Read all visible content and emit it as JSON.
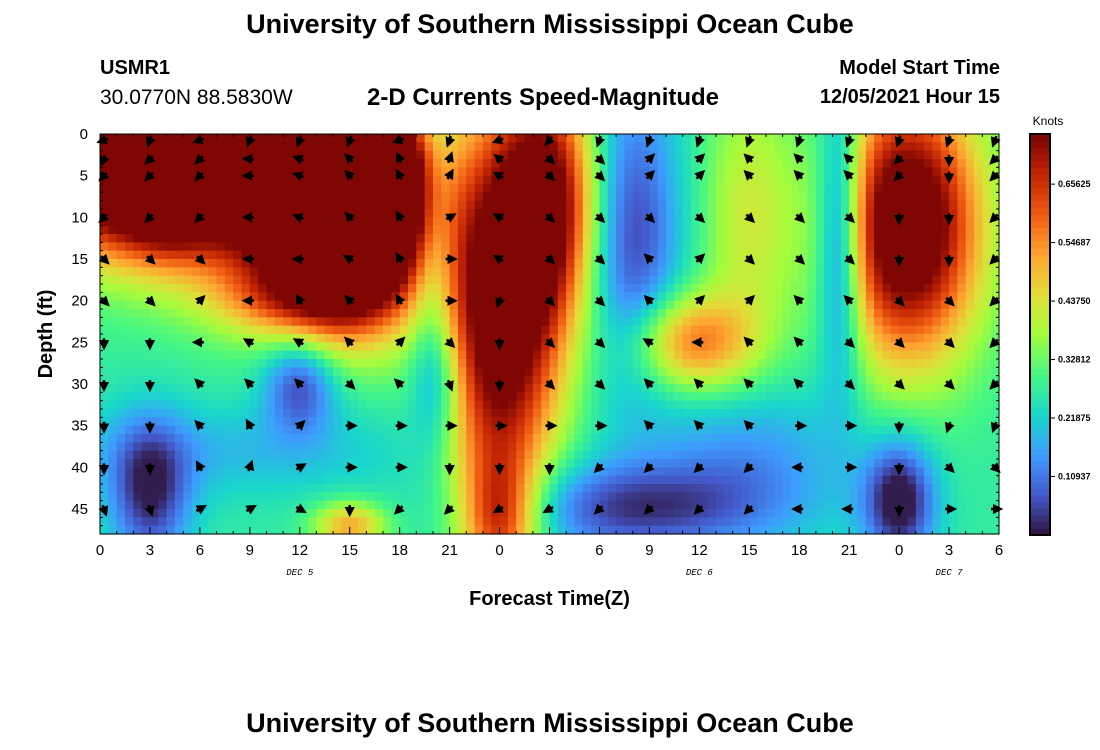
{
  "header": {
    "title": "University of Southern Mississippi Ocean Cube",
    "station_id": "USMR1",
    "coordinates": "30.0770N  88.5830W",
    "subtitle": "2-D Currents Speed-Magnitude",
    "model_start_label": "Model Start Time",
    "model_start_value": "12/05/2021 Hour 15"
  },
  "footer": {
    "title": "University of Southern Mississippi Ocean Cube"
  },
  "chart_data": {
    "type": "heatmap",
    "title": "2-D Currents Speed-Magnitude",
    "xlabel": "Forecast Time(Z)",
    "ylabel": "Depth (ft)",
    "x_ticks": [
      "0",
      "3",
      "6",
      "9",
      "12",
      "15",
      "18",
      "21",
      "0",
      "3",
      "6",
      "9",
      "12",
      "15",
      "18",
      "21",
      "0",
      "3",
      "6"
    ],
    "xlim": [
      0,
      54
    ],
    "y_ticks": [
      "0",
      "5",
      "10",
      "15",
      "20",
      "25",
      "30",
      "35",
      "40",
      "45"
    ],
    "ylim": [
      0,
      48
    ],
    "y_inverted": true,
    "date_labels": [
      {
        "label": "DEC 5",
        "x": 12
      },
      {
        "label": "DEC 6",
        "x": 36
      },
      {
        "label": "DEC 7",
        "x": 51
      }
    ],
    "colorbar": {
      "label": "Knots",
      "range": [
        0,
        0.75
      ],
      "ticks": [
        "0.65625",
        "0.54687",
        "0.43750",
        "0.32812",
        "0.21875",
        "0.10937"
      ],
      "tick_values": [
        0.65625,
        0.546875,
        0.4375,
        0.328125,
        0.21875,
        0.109375
      ]
    },
    "speed_features": [
      {
        "t": 0,
        "d": 4,
        "sx": 3,
        "sy": 7,
        "v": 0.56
      },
      {
        "t": 4,
        "d": 4,
        "sx": 2,
        "sy": 6,
        "v": 0.52
      },
      {
        "t": 10,
        "d": 4,
        "sx": 5,
        "sy": 9,
        "v": 0.75
      },
      {
        "t": 15,
        "d": 14,
        "sx": 3,
        "sy": 7,
        "v": 0.68
      },
      {
        "t": 17,
        "d": 5,
        "sx": 2,
        "sy": 6,
        "v": 0.6
      },
      {
        "t": 20,
        "d": 14,
        "sx": 1,
        "sy": 14,
        "v": -0.16
      },
      {
        "t": 24,
        "d": 22,
        "sx": 2.5,
        "sy": 16,
        "v": 0.58
      },
      {
        "t": 27,
        "d": 8,
        "sx": 2,
        "sy": 10,
        "v": 0.45
      },
      {
        "t": 24,
        "d": 46,
        "sx": 1.5,
        "sy": 5,
        "v": 0.3
      },
      {
        "t": 32,
        "d": 12,
        "sx": 2,
        "sy": 13,
        "v": -0.22
      },
      {
        "t": 35.5,
        "d": 25,
        "sx": 2.5,
        "sy": 4,
        "v": 0.3
      },
      {
        "t": 44.5,
        "d": 12,
        "sx": 1,
        "sy": 12,
        "v": -0.3
      },
      {
        "t": 48.5,
        "d": 11,
        "sx": 3,
        "sy": 11,
        "v": 0.62
      },
      {
        "t": 12,
        "d": 30,
        "sx": 1.5,
        "sy": 4,
        "v": -0.22
      },
      {
        "t": 20.5,
        "d": 30,
        "sx": 1.2,
        "sy": 5,
        "v": -0.12
      },
      {
        "t": 3,
        "d": 43,
        "sx": 1.7,
        "sy": 6,
        "v": -0.25
      },
      {
        "t": 8,
        "d": 38,
        "sx": 8,
        "sy": 4,
        "v": -0.08
      },
      {
        "t": 32,
        "d": 45,
        "sx": 6,
        "sy": 4,
        "v": -0.22
      },
      {
        "t": 48,
        "d": 44,
        "sx": 1.5,
        "sy": 5,
        "v": -0.3
      },
      {
        "t": 39,
        "d": 38,
        "sx": 4,
        "sy": 6,
        "v": -0.12
      },
      {
        "t": 15,
        "d": 47,
        "sx": 1.5,
        "sy": 2,
        "v": 0.25
      },
      {
        "t": 39,
        "d": 10,
        "sx": 2,
        "sy": 12,
        "v": 0.15
      },
      {
        "t": 11,
        "d": 20,
        "sx": 3,
        "sy": 3,
        "v": 0.15
      }
    ],
    "vector_times": [
      0,
      3,
      6,
      9,
      12,
      15,
      18,
      21,
      24,
      27,
      30,
      33,
      36,
      39,
      42,
      45,
      48,
      51,
      54
    ],
    "vector_depths": [
      0,
      3,
      5,
      8,
      10,
      12,
      15,
      17,
      20,
      22,
      25,
      27,
      30,
      32,
      35,
      37,
      40,
      42,
      45
    ],
    "vector_rows": [
      {
        "depth": 0,
        "deg": [
          250,
          200,
          250,
          200,
          200,
          200,
          250,
          200,
          250,
          220,
          200,
          200,
          200,
          200,
          200,
          200,
          200,
          200,
          200
        ]
      },
      {
        "depth": 3,
        "deg": [
          200,
          225,
          225,
          275,
          290,
          315,
          335,
          20,
          310,
          135,
          135,
          45,
          45,
          315,
          315,
          315,
          225,
          180,
          225
        ]
      },
      {
        "depth": 5,
        "deg": [
          225,
          225,
          225,
          270,
          290,
          315,
          330,
          30,
          300,
          135,
          135,
          45,
          45,
          315,
          315,
          315,
          225,
          180,
          225
        ]
      },
      {
        "depth": 10,
        "deg": [
          225,
          225,
          225,
          270,
          290,
          315,
          330,
          60,
          300,
          135,
          135,
          135,
          135,
          135,
          135,
          135,
          180,
          180,
          225
        ]
      },
      {
        "depth": 15,
        "deg": [
          135,
          135,
          135,
          270,
          270,
          300,
          330,
          90,
          300,
          135,
          135,
          315,
          45,
          135,
          135,
          135,
          180,
          180,
          225
        ]
      },
      {
        "depth": 20,
        "deg": [
          135,
          135,
          45,
          270,
          330,
          315,
          330,
          90,
          200,
          135,
          135,
          315,
          45,
          45,
          315,
          315,
          135,
          135,
          225
        ]
      },
      {
        "depth": 25,
        "deg": [
          180,
          180,
          270,
          300,
          300,
          315,
          45,
          135,
          180,
          135,
          135,
          300,
          270,
          315,
          315,
          135,
          135,
          135,
          225
        ]
      },
      {
        "depth": 30,
        "deg": [
          180,
          180,
          315,
          315,
          315,
          135,
          315,
          160,
          180,
          135,
          135,
          315,
          315,
          315,
          315,
          135,
          135,
          135,
          225
        ]
      },
      {
        "depth": 35,
        "deg": [
          180,
          180,
          315,
          330,
          45,
          90,
          90,
          90,
          90,
          90,
          90,
          315,
          315,
          315,
          90,
          90,
          180,
          200,
          200
        ]
      },
      {
        "depth": 40,
        "deg": [
          180,
          180,
          330,
          20,
          60,
          90,
          90,
          180,
          180,
          180,
          225,
          225,
          225,
          225,
          270,
          90,
          180,
          135,
          135
        ]
      },
      {
        "depth": 45,
        "deg": [
          160,
          160,
          60,
          60,
          120,
          180,
          225,
          225,
          240,
          240,
          225,
          225,
          225,
          225,
          270,
          270,
          180,
          90,
          90
        ]
      }
    ]
  }
}
